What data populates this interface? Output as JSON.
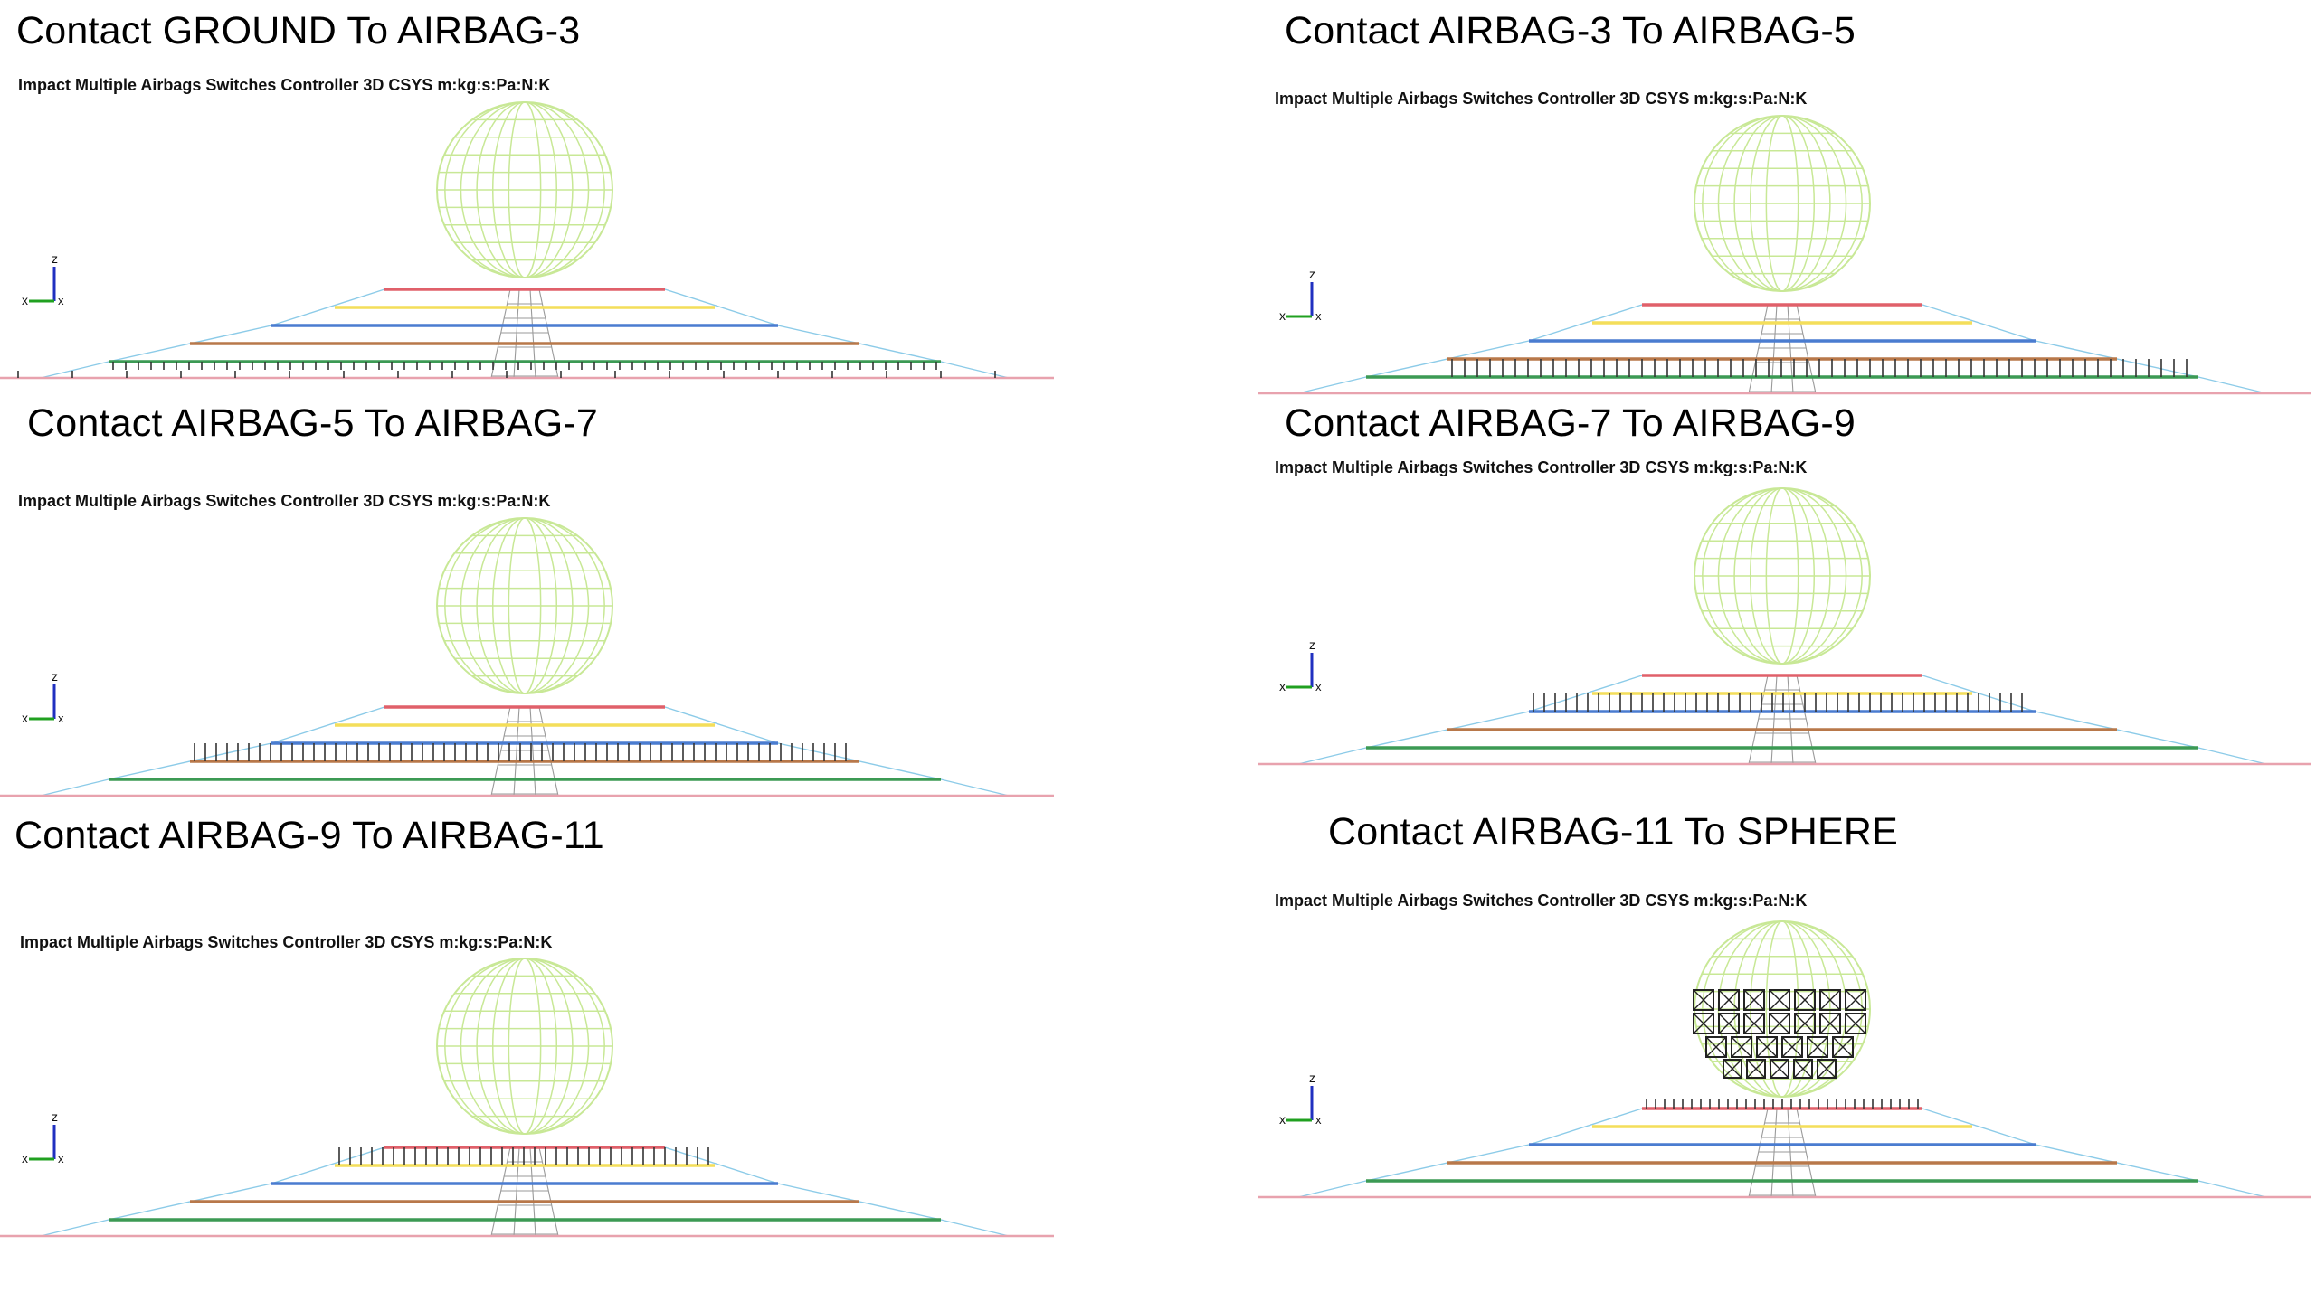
{
  "subtitle": "Impact Multiple Airbags Switches Controller 3D CSYS m:kg:s:Pa:N:K",
  "axis_labels": {
    "x": "x",
    "z": "z",
    "y": "x"
  },
  "colors": {
    "sphere": "#c8e896",
    "layer_red": "#e0606a",
    "layer_yellow": "#f4de5a",
    "layer_blue": "#4a7cd0",
    "layer_brown": "#b8784a",
    "layer_green": "#3c9a54",
    "ground": "#e8a2ae",
    "sides": "#8ccbe8",
    "tick": "#333333",
    "axis_z": "#2030c0",
    "axis_x": "#20a020"
  },
  "panels": [
    {
      "title": "Contact GROUND To AIRBAG-3",
      "contact_between": [
        "GROUND",
        "AIRBAG-3"
      ]
    },
    {
      "title": "Contact AIRBAG-3 To AIRBAG-5",
      "contact_between": [
        "AIRBAG-3",
        "AIRBAG-5"
      ]
    },
    {
      "title": "Contact AIRBAG-5 To AIRBAG-7",
      "contact_between": [
        "AIRBAG-5",
        "AIRBAG-7"
      ]
    },
    {
      "title": "Contact AIRBAG-7 To AIRBAG-9",
      "contact_between": [
        "AIRBAG-7",
        "AIRBAG-9"
      ]
    },
    {
      "title": "Contact AIRBAG-9 To AIRBAG-11",
      "contact_between": [
        "AIRBAG-9",
        "AIRBAG-11"
      ]
    },
    {
      "title": "Contact AIRBAG-11 To SPHERE",
      "contact_between": [
        "AIRBAG-11",
        "SPHERE"
      ]
    }
  ]
}
